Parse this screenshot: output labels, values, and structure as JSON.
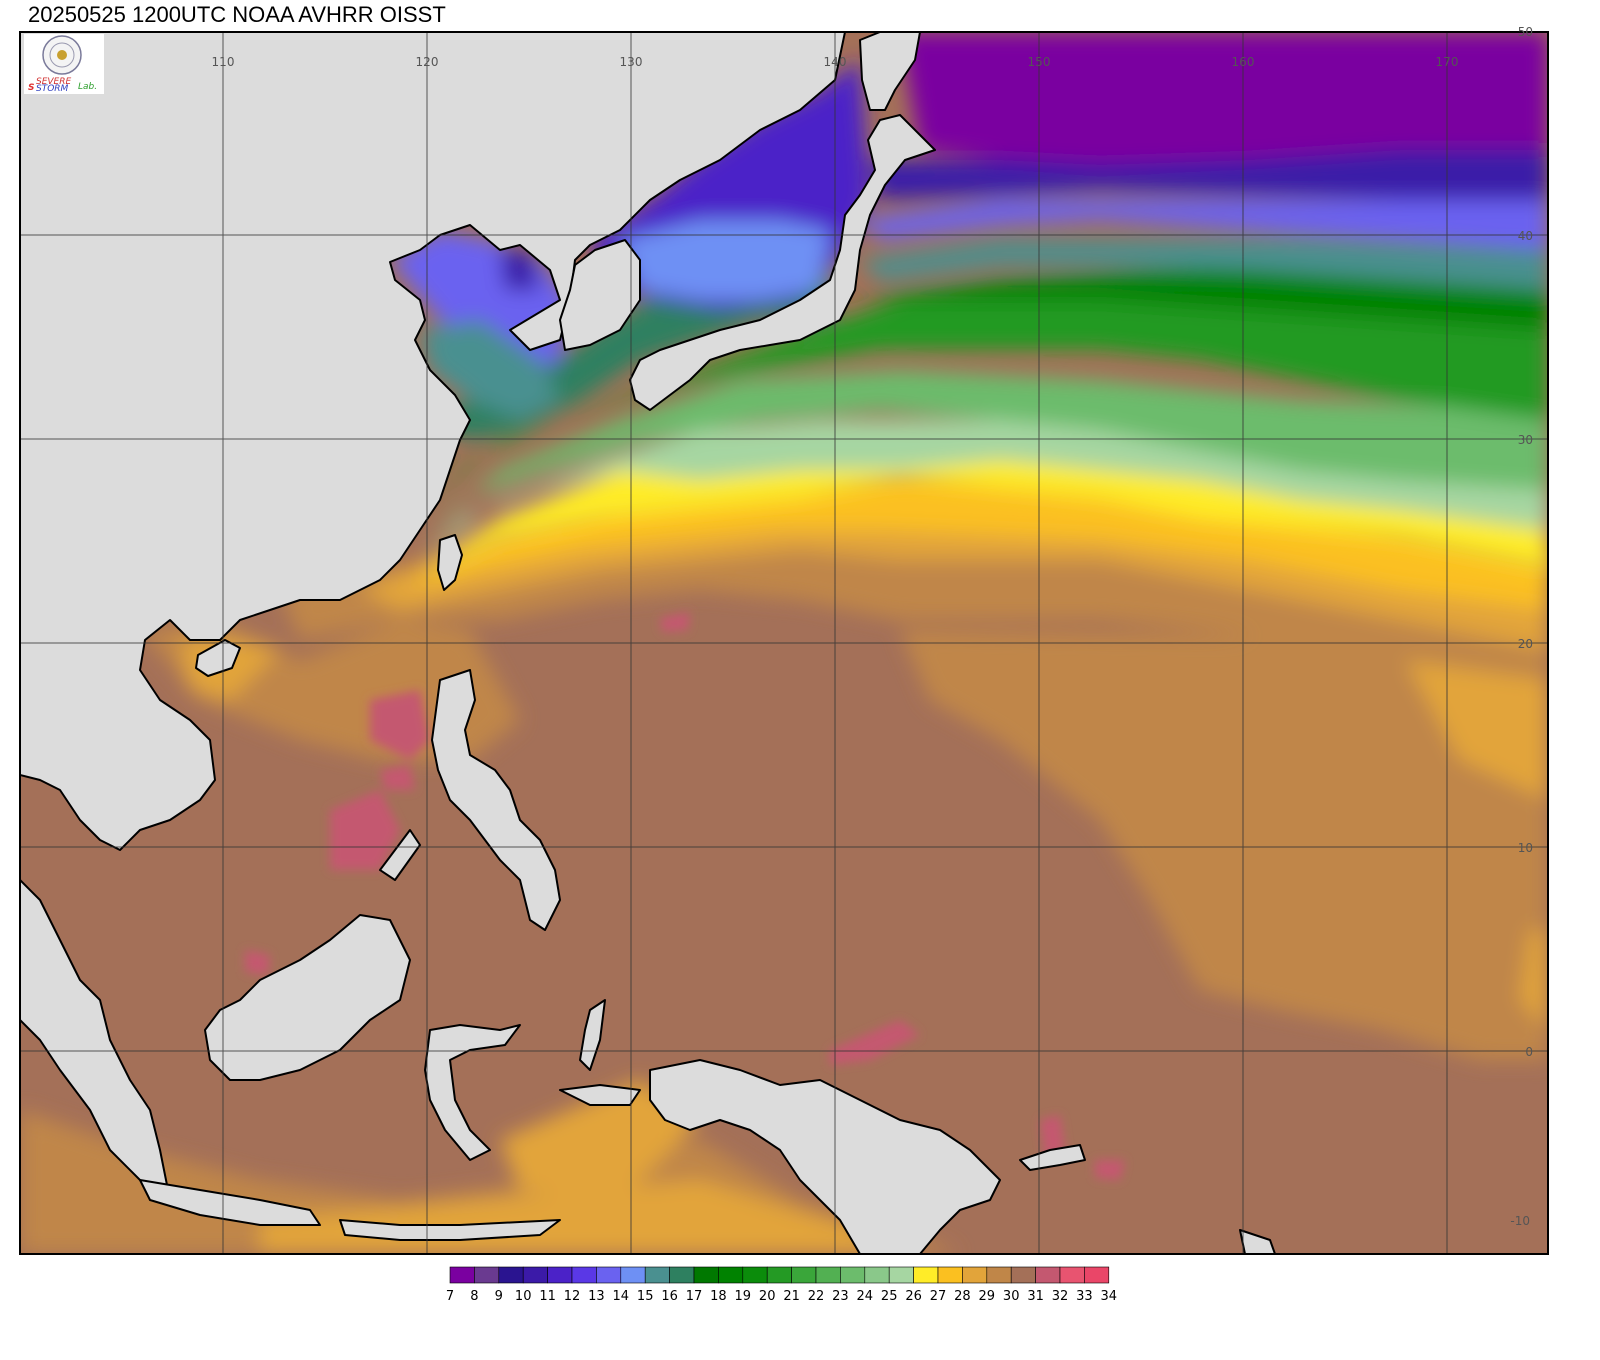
{
  "title": "20250525 1200UTC NOAA AVHRR OISST",
  "logo": {
    "word1": "SEVERE",
    "word2": "STORM",
    "word3": "Lab."
  },
  "map": {
    "lon_ticks": [
      "110",
      "120",
      "130",
      "140",
      "150",
      "160",
      "170"
    ],
    "lat_ticks": [
      "50",
      "40",
      "30",
      "20",
      "10",
      "0",
      "-10"
    ]
  },
  "colorbar": {
    "labels": [
      "7",
      "8",
      "9",
      "10",
      "11",
      "12",
      "13",
      "14",
      "15",
      "16",
      "17",
      "18",
      "19",
      "20",
      "21",
      "22",
      "23",
      "24",
      "25",
      "26",
      "27",
      "28",
      "29",
      "30",
      "31",
      "32",
      "33",
      "34"
    ],
    "colors": [
      "#7a00a0",
      "#6a3a90",
      "#2a1490",
      "#3b1aa8",
      "#4b22c8",
      "#5a38e6",
      "#6a62f0",
      "#6e90f4",
      "#4a9090",
      "#2e8060",
      "#007800",
      "#008200",
      "#0b8c0b",
      "#249a24",
      "#3aa63a",
      "#52b052",
      "#6cbc6c",
      "#8ac88a",
      "#a6d6a2",
      "#ffec28",
      "#fbc020",
      "#e2a43a",
      "#c08648",
      "#a47058",
      "#c45870",
      "#e85470",
      "#ea4668",
      "#d42848"
    ]
  }
}
